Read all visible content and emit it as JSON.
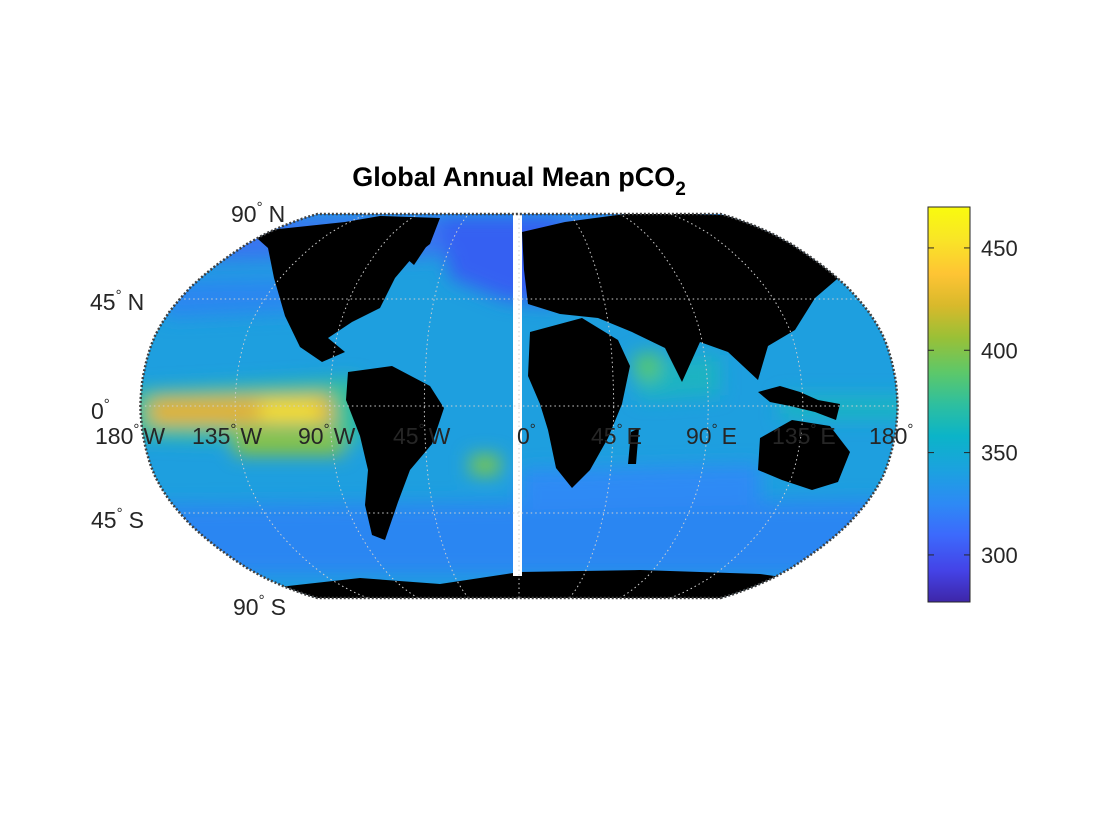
{
  "figure": {
    "title_main": "Global Annual Mean pCO",
    "title_subscript": "2"
  },
  "map": {
    "projection": "Robinson",
    "land_color": "#000000",
    "background_color": "#ffffff",
    "gridlines": "dotted",
    "lat_labels": [
      {
        "value": 90,
        "num": "90",
        "hemi": "N"
      },
      {
        "value": 45,
        "num": "45",
        "hemi": "N"
      },
      {
        "value": 0,
        "num": "0",
        "hemi": ""
      },
      {
        "value": -45,
        "num": "45",
        "hemi": "S"
      },
      {
        "value": -90,
        "num": "90",
        "hemi": "S"
      }
    ],
    "lon_labels": [
      {
        "value": -180,
        "num": "180",
        "hemi": "W"
      },
      {
        "value": -135,
        "num": "135",
        "hemi": "W"
      },
      {
        "value": -90,
        "num": "90",
        "hemi": "W"
      },
      {
        "value": -45,
        "num": "45",
        "hemi": "W"
      },
      {
        "value": 0,
        "num": "0",
        "hemi": ""
      },
      {
        "value": 45,
        "num": "45",
        "hemi": "E"
      },
      {
        "value": 90,
        "num": "90",
        "hemi": "E"
      },
      {
        "value": 135,
        "num": "135",
        "hemi": "E"
      },
      {
        "value": 180,
        "num": "180",
        "hemi": ""
      }
    ],
    "degree_symbol": "°"
  },
  "colorbar": {
    "colormap": "parula",
    "range": [
      277,
      470
    ],
    "ticks": [
      300,
      350,
      400,
      450
    ],
    "tick_labels": [
      "300",
      "350",
      "400",
      "450"
    ]
  },
  "colors": {
    "parula": [
      "#3e26a8",
      "#4443e7",
      "#3c6afc",
      "#2d8af5",
      "#1ca1e0",
      "#0bb4c8",
      "#2ebf9f",
      "#5cc86a",
      "#9ac036",
      "#d8b92b",
      "#fec434",
      "#f9e626",
      "#f9fb0e"
    ]
  }
}
